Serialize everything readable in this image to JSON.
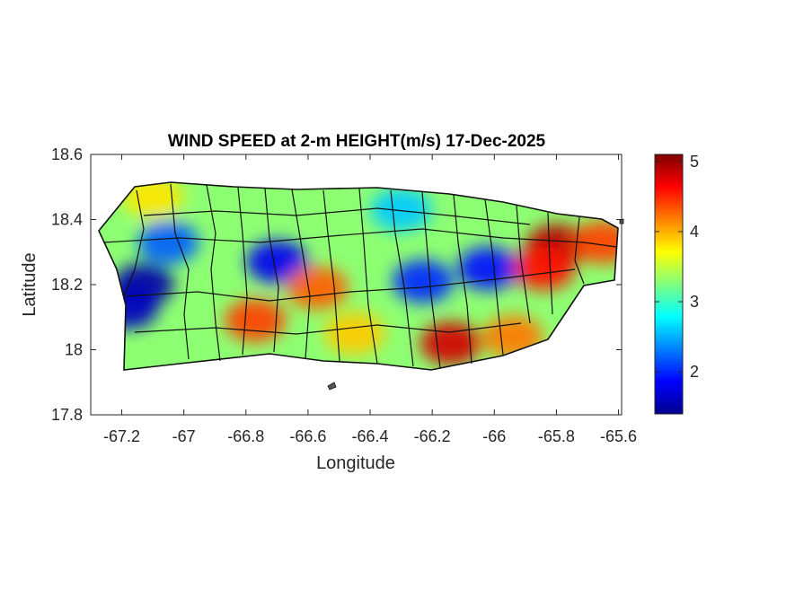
{
  "chart_data": {
    "type": "heatmap",
    "title": "WIND SPEED at 2-m HEIGHT(m/s) 17-Dec-2025",
    "xlabel": "Longitude",
    "ylabel": "Latitude",
    "xlim": [
      -67.3,
      -65.59
    ],
    "ylim": [
      17.8,
      18.6
    ],
    "x_ticks": [
      {
        "value": -67.2,
        "label": "-67.2"
      },
      {
        "value": -67.0,
        "label": "-67"
      },
      {
        "value": -66.8,
        "label": "-66.8"
      },
      {
        "value": -66.6,
        "label": "-66.6"
      },
      {
        "value": -66.4,
        "label": "-66.4"
      },
      {
        "value": -66.2,
        "label": "-66.2"
      },
      {
        "value": -66.0,
        "label": "-66"
      },
      {
        "value": -65.8,
        "label": "-65.8"
      },
      {
        "value": -65.6,
        "label": "-65.6"
      }
    ],
    "y_ticks": [
      {
        "value": 17.8,
        "label": "17.8"
      },
      {
        "value": 18.0,
        "label": "18"
      },
      {
        "value": 18.2,
        "label": "18.2"
      },
      {
        "value": 18.4,
        "label": "18.4"
      },
      {
        "value": 18.6,
        "label": "18.6"
      }
    ],
    "colorbar": {
      "colormap": "jet",
      "range": [
        1.4,
        5.1
      ],
      "ticks": [
        {
          "value": 2,
          "label": "2"
        },
        {
          "value": 3,
          "label": "3"
        },
        {
          "value": 4,
          "label": "4"
        },
        {
          "value": 5,
          "label": "5"
        }
      ]
    },
    "wind_speed_hotspots": [
      {
        "lon": -67.13,
        "lat": 18.2,
        "value": 1.5
      },
      {
        "lon": -67.18,
        "lat": 18.13,
        "value": 1.6
      },
      {
        "lon": -67.05,
        "lat": 18.33,
        "value": 2.2
      },
      {
        "lon": -66.7,
        "lat": 18.27,
        "value": 1.8
      },
      {
        "lon": -66.23,
        "lat": 18.21,
        "value": 2.0
      },
      {
        "lon": -66.02,
        "lat": 18.25,
        "value": 1.9
      },
      {
        "lon": -66.3,
        "lat": 18.43,
        "value": 2.6
      },
      {
        "lon": -65.8,
        "lat": 18.32,
        "value": 4.9
      },
      {
        "lon": -65.84,
        "lat": 18.25,
        "value": 4.6
      },
      {
        "lon": -66.14,
        "lat": 18.02,
        "value": 4.8
      },
      {
        "lon": -66.77,
        "lat": 18.09,
        "value": 4.4
      },
      {
        "lon": -66.57,
        "lat": 18.19,
        "value": 4.3
      },
      {
        "lon": -65.94,
        "lat": 18.04,
        "value": 4.2
      },
      {
        "lon": -65.65,
        "lat": 18.33,
        "value": 4.4
      },
      {
        "lon": -66.45,
        "lat": 18.05,
        "value": 3.9
      },
      {
        "lon": -67.1,
        "lat": 18.47,
        "value": 3.8
      }
    ],
    "background_value": 3.3
  }
}
